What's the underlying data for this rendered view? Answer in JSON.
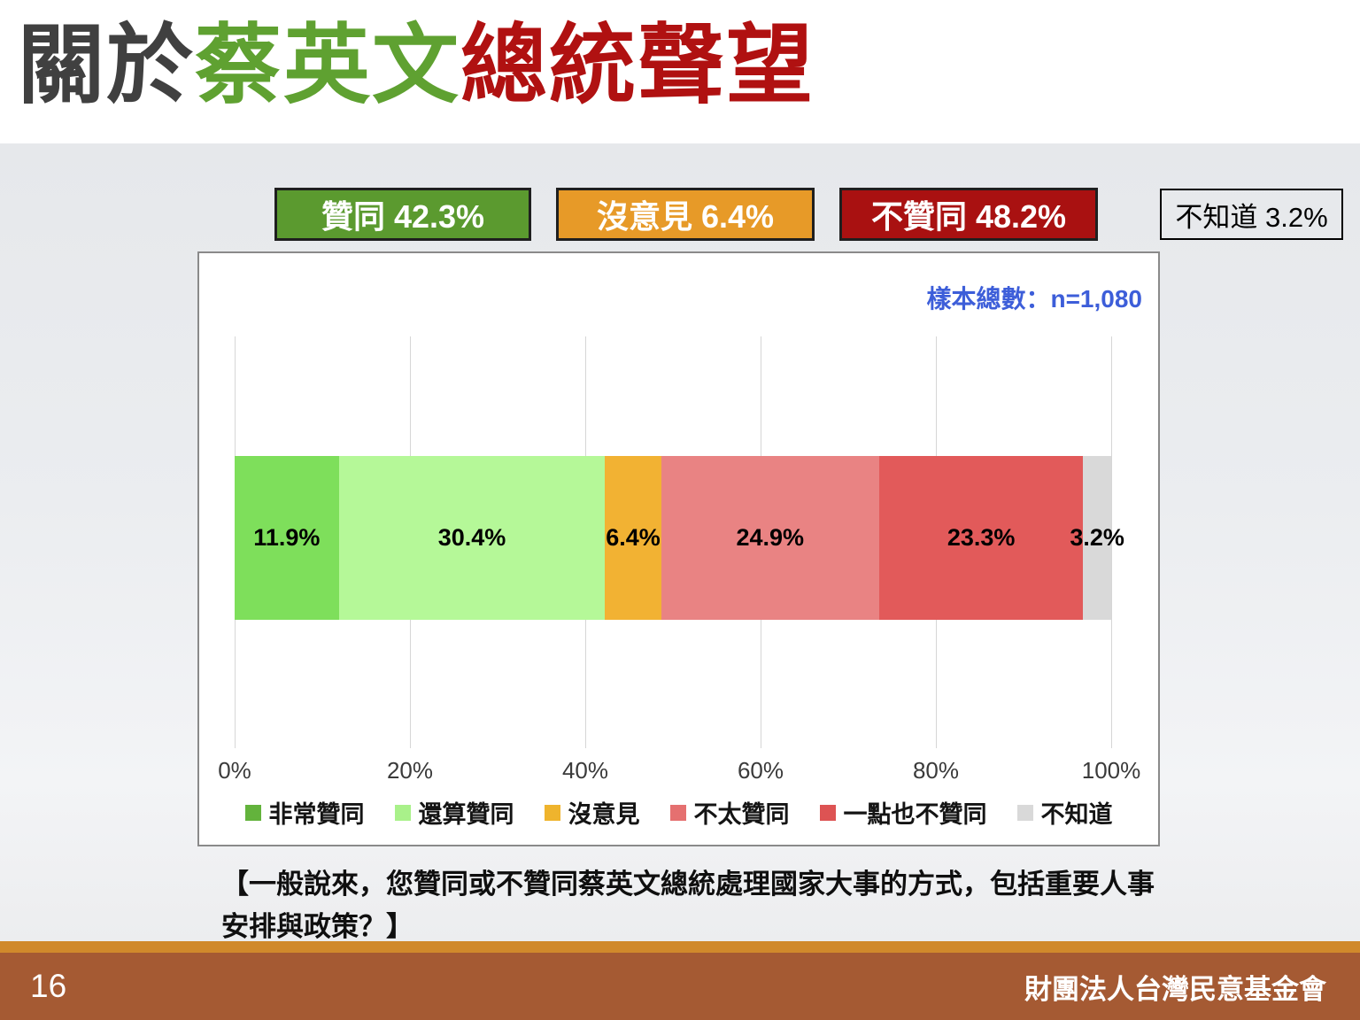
{
  "title": {
    "segments": [
      {
        "text": "關於",
        "color": "#404040"
      },
      {
        "text": "蔡英文",
        "color": "#5fa131"
      },
      {
        "text": "總統聲望",
        "color": "#b01111"
      }
    ]
  },
  "summary": {
    "boxes": [
      {
        "label": "贊同 42.3%",
        "bg": "#5b9a2f",
        "border": "#1f1f1f",
        "text_color": "#ffffff"
      },
      {
        "label": "沒意見 6.4%",
        "bg": "#e79a28",
        "border": "#1f1f1f",
        "text_color": "#ffffff"
      },
      {
        "label": "不贊同 48.2%",
        "bg": "#a91111",
        "border": "#1f1f1f",
        "text_color": "#ffffff"
      },
      {
        "label": "不知道 3.2%",
        "bg": "transparent",
        "border": "#000000",
        "text_color": "#000000"
      }
    ]
  },
  "chart": {
    "sample_label": "樣本總數：n=1,080",
    "sample_color": "#3d5ed9"
  },
  "chart_data": {
    "type": "bar",
    "subtype": "stacked-horizontal",
    "title": "",
    "categories": [
      "非常贊同",
      "還算贊同",
      "沒意見",
      "不太贊同",
      "一點也不贊同",
      "不知道"
    ],
    "values": [
      11.9,
      30.4,
      6.4,
      24.9,
      23.3,
      3.2
    ],
    "data_labels": [
      "11.9%",
      "30.4%",
      "6.4%",
      "24.9%",
      "23.3%",
      "3.2%"
    ],
    "colors": [
      "#7edf5b",
      "#b5f898",
      "#f2b233",
      "#e98383",
      "#e25a5a",
      "#d9d9d9"
    ],
    "legend_colors": [
      "#63b33c",
      "#a9f18a",
      "#efb42d",
      "#e57070",
      "#dd5353",
      "#d9d9d9"
    ],
    "x_ticks": [
      "0%",
      "20%",
      "40%",
      "60%",
      "80%",
      "100%"
    ],
    "xlim": [
      0,
      100
    ],
    "grid": true,
    "legend_position": "bottom",
    "sample_note": "樣本總數：n=1,080"
  },
  "question": {
    "text": "【一般說來，您贊同或不贊同蔡英文總統處理國家大事的方式，包括重要人事安排與政策？】"
  },
  "footer": {
    "page_number": "16",
    "org": "財團法人台灣民意基金會",
    "bar_color": "#a55a33",
    "strip_color": "#d0892b"
  }
}
